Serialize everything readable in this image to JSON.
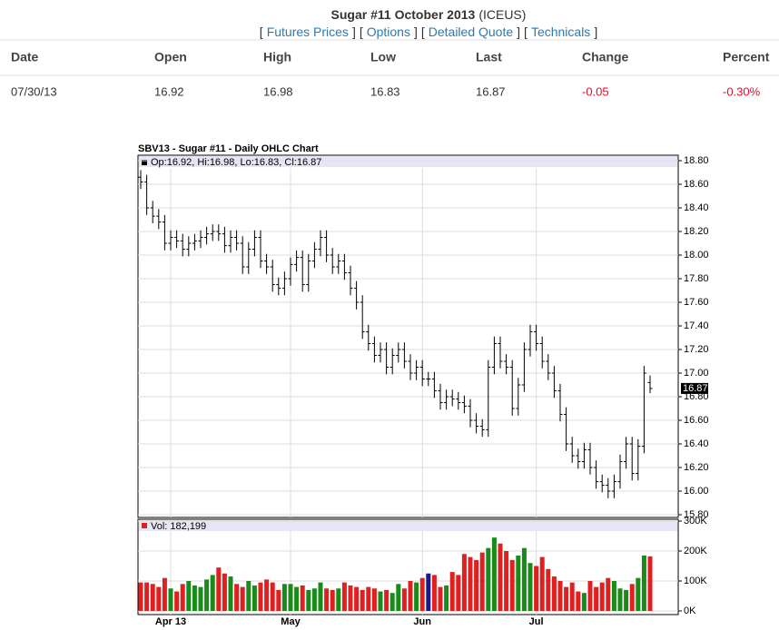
{
  "header": {
    "title": "Sugar #11 October 2013",
    "exchange": "(ICEUS)",
    "open_bracket": "[",
    "close_bracket": "]",
    "links": [
      "Futures Prices",
      "Options",
      "Detailed Quote",
      "Technicals"
    ]
  },
  "table": {
    "headers": [
      "Date",
      "Open",
      "High",
      "Low",
      "Last",
      "Change",
      "Percent"
    ],
    "rows": [
      [
        "07/30/13",
        "16.92",
        "16.98",
        "16.83",
        "16.87",
        "-0.05",
        "-0.30%"
      ]
    ]
  },
  "chart_data": [
    {
      "type": "ohlc",
      "title": "SBV13 - Sugar #11 - Daily OHLC Chart",
      "legend": "Op:16.92, Hi:16.98, Lo:16.83, Cl:16.87",
      "color": "#000000",
      "grid": true,
      "categories": [
        null,
        null,
        null,
        null,
        null,
        "Apr 13",
        null,
        null,
        null,
        null,
        null,
        null,
        null,
        null,
        null,
        null,
        null,
        null,
        null,
        null,
        null,
        null,
        null,
        null,
        null,
        "May",
        null,
        null,
        null,
        null,
        null,
        null,
        null,
        null,
        null,
        null,
        null,
        null,
        null,
        null,
        null,
        null,
        null,
        null,
        null,
        null,
        null,
        "Jun",
        null,
        null,
        null,
        null,
        null,
        null,
        null,
        null,
        null,
        null,
        null,
        null,
        null,
        null,
        null,
        null,
        null,
        null,
        "Jul",
        null,
        null,
        null,
        null,
        null,
        null,
        null,
        null,
        null,
        null,
        null,
        null,
        null,
        null,
        null,
        null,
        null,
        null,
        null
      ],
      "open": [
        18.66,
        18.62,
        18.4,
        18.33,
        18.28,
        18.1,
        18.15,
        18.12,
        18.05,
        18.1,
        18.12,
        18.15,
        18.18,
        18.2,
        18.18,
        18.08,
        18.15,
        18.1,
        17.9,
        18.05,
        18.15,
        17.95,
        17.9,
        17.75,
        17.72,
        17.8,
        17.92,
        17.98,
        17.75,
        17.95,
        18.05,
        18.15,
        18.0,
        17.9,
        17.95,
        17.85,
        17.72,
        17.6,
        17.35,
        17.25,
        17.15,
        17.2,
        17.05,
        17.15,
        17.2,
        17.1,
        17.0,
        17.05,
        16.95,
        16.95,
        16.85,
        16.75,
        16.8,
        16.78,
        16.75,
        16.72,
        16.6,
        16.55,
        16.52,
        17.05,
        17.25,
        17.1,
        17.05,
        16.7,
        16.9,
        17.2,
        17.35,
        17.25,
        17.1,
        17.0,
        16.85,
        16.65,
        16.4,
        16.3,
        16.25,
        16.35,
        16.2,
        16.08,
        16.05,
        16.0,
        16.08,
        16.25,
        16.4,
        16.15,
        16.38,
        16.92
      ],
      "high": [
        18.72,
        18.68,
        18.46,
        18.39,
        18.34,
        18.21,
        18.21,
        18.18,
        18.16,
        18.18,
        18.21,
        18.24,
        18.26,
        18.26,
        18.24,
        18.21,
        18.21,
        18.16,
        18.11,
        18.21,
        18.21,
        18.01,
        17.96,
        17.81,
        17.86,
        17.98,
        18.04,
        18.04,
        18.01,
        18.11,
        18.21,
        18.21,
        18.06,
        18.01,
        18.01,
        17.91,
        17.78,
        17.66,
        17.41,
        17.31,
        17.26,
        17.26,
        17.21,
        17.26,
        17.26,
        17.16,
        17.11,
        17.11,
        17.01,
        17.01,
        16.91,
        16.86,
        16.86,
        16.84,
        16.81,
        16.78,
        16.66,
        16.61,
        17.11,
        17.31,
        17.31,
        17.16,
        17.11,
        16.96,
        17.26,
        17.41,
        17.41,
        17.31,
        17.16,
        17.06,
        16.91,
        16.71,
        16.46,
        16.36,
        16.41,
        16.41,
        16.26,
        16.14,
        16.11,
        16.14,
        16.31,
        16.46,
        16.46,
        16.44,
        17.06,
        16.98
      ],
      "low": [
        18.56,
        18.34,
        18.27,
        18.22,
        18.04,
        18.04,
        18.06,
        17.99,
        17.99,
        18.04,
        18.06,
        18.09,
        18.12,
        18.12,
        18.02,
        18.02,
        18.04,
        17.84,
        17.84,
        17.99,
        17.89,
        17.84,
        17.69,
        17.66,
        17.66,
        17.74,
        17.86,
        17.69,
        17.69,
        17.89,
        17.99,
        17.94,
        17.84,
        17.84,
        17.79,
        17.66,
        17.54,
        17.29,
        17.19,
        17.09,
        17.09,
        16.99,
        16.99,
        17.09,
        17.04,
        16.94,
        16.94,
        16.89,
        16.89,
        16.79,
        16.69,
        16.69,
        16.72,
        16.69,
        16.66,
        16.54,
        16.49,
        16.46,
        16.46,
        16.99,
        17.04,
        16.99,
        16.64,
        16.64,
        16.84,
        17.14,
        17.19,
        17.04,
        16.94,
        16.79,
        16.59,
        16.34,
        16.24,
        16.19,
        16.19,
        16.14,
        16.02,
        15.99,
        15.94,
        15.94,
        16.02,
        16.19,
        16.09,
        16.09,
        16.32,
        16.83
      ],
      "close": [
        18.62,
        18.4,
        18.33,
        18.28,
        18.1,
        18.15,
        18.12,
        18.05,
        18.1,
        18.12,
        18.15,
        18.18,
        18.2,
        18.18,
        18.08,
        18.15,
        18.1,
        17.9,
        18.05,
        18.15,
        17.95,
        17.9,
        17.75,
        17.72,
        17.8,
        17.92,
        17.98,
        17.75,
        17.95,
        18.05,
        18.15,
        18.0,
        17.9,
        17.95,
        17.85,
        17.72,
        17.6,
        17.35,
        17.25,
        17.15,
        17.2,
        17.05,
        17.15,
        17.2,
        17.1,
        17.0,
        17.05,
        16.95,
        16.95,
        16.85,
        16.75,
        16.8,
        16.78,
        16.75,
        16.72,
        16.6,
        16.55,
        16.52,
        17.05,
        17.25,
        17.1,
        17.05,
        16.7,
        16.9,
        17.2,
        17.35,
        17.25,
        17.1,
        17.0,
        16.85,
        16.65,
        16.4,
        16.3,
        16.25,
        16.35,
        16.2,
        16.08,
        16.05,
        16.0,
        16.08,
        16.25,
        16.4,
        16.15,
        16.38,
        17.0,
        16.87
      ],
      "ylim": [
        15.8,
        18.8
      ],
      "yticks": [
        {
          "value": 15.8,
          "label": "15.80"
        },
        {
          "value": 16,
          "label": "16.00"
        },
        {
          "value": 16.2,
          "label": "16.20"
        },
        {
          "value": 16.4,
          "label": "16.40"
        },
        {
          "value": 16.6,
          "label": "16.60"
        },
        {
          "value": 16.8,
          "label": "16.80"
        },
        {
          "value": 17,
          "label": "17.00"
        },
        {
          "value": 17.2,
          "label": "17.20"
        },
        {
          "value": 17.4,
          "label": "17.40"
        },
        {
          "value": 17.6,
          "label": "17.60"
        },
        {
          "value": 17.8,
          "label": "17.80"
        },
        {
          "value": 18,
          "label": "18.00"
        },
        {
          "value": 18.2,
          "label": "18.20"
        },
        {
          "value": 18.4,
          "label": "18.40"
        },
        {
          "value": 18.6,
          "label": "18.60"
        },
        {
          "value": 18.8,
          "label": "18.80"
        }
      ]
    },
    {
      "type": "bar",
      "legend": "Vol: 182,199",
      "legend_color": "#e02020",
      "colors": {
        "up": "#1a8a1a",
        "down": "#e02020",
        "flat": "#1a1a8a"
      },
      "values": [
        95000,
        95000,
        90000,
        80000,
        110000,
        75000,
        65000,
        90000,
        100000,
        85000,
        80000,
        105000,
        120000,
        145000,
        125000,
        115000,
        90000,
        80000,
        100000,
        85000,
        95000,
        105000,
        95000,
        70000,
        90000,
        90000,
        80000,
        85000,
        70000,
        75000,
        95000,
        75000,
        70000,
        75000,
        95000,
        85000,
        80000,
        70000,
        80000,
        75000,
        65000,
        70000,
        60000,
        90000,
        75000,
        100000,
        95000,
        110000,
        125000,
        120000,
        80000,
        85000,
        130000,
        120000,
        190000,
        180000,
        170000,
        195000,
        210000,
        245000,
        225000,
        200000,
        170000,
        185000,
        210000,
        160000,
        150000,
        180000,
        140000,
        115000,
        100000,
        80000,
        95000,
        65000,
        60000,
        100000,
        80000,
        95000,
        110000,
        100000,
        75000,
        70000,
        90000,
        110000,
        185000,
        182199
      ],
      "ylim": [
        0,
        300000
      ],
      "yticks": [
        {
          "value": 0,
          "label": "0K"
        },
        {
          "value": 100000,
          "label": "100K"
        },
        {
          "value": 200000,
          "label": "200K"
        },
        {
          "value": 300000,
          "label": "300K"
        }
      ]
    }
  ]
}
